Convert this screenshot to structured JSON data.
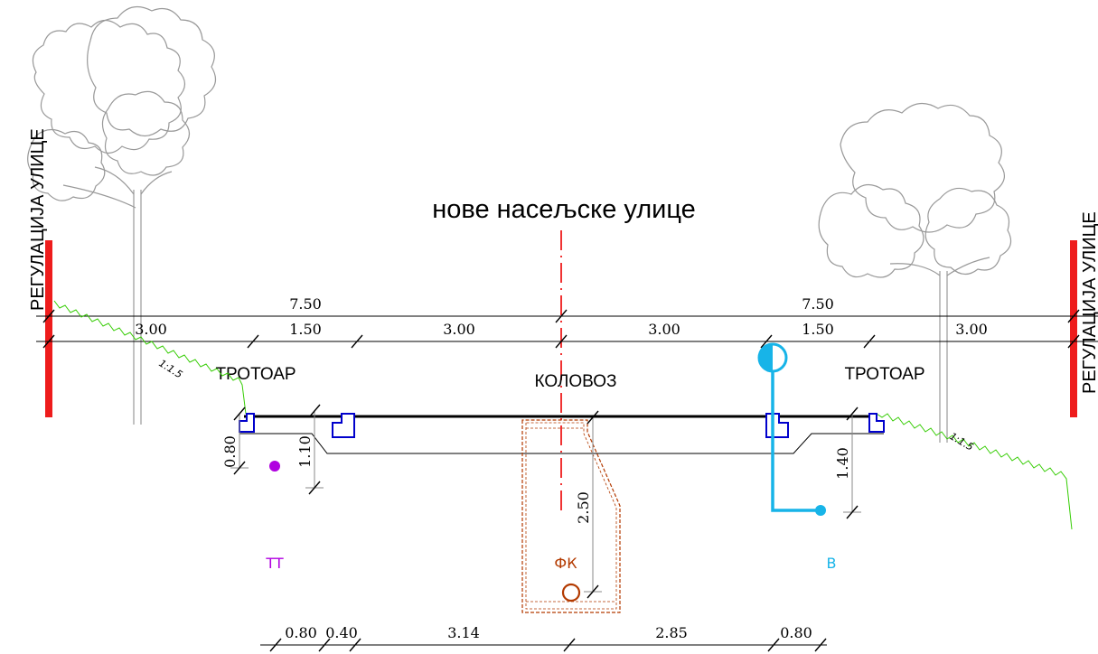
{
  "title": "нове насељске улице",
  "regulation_left": "РЕГУЛАЦИЈА УЛИЦЕ",
  "regulation_right": "РЕГУЛАЦИЈА УЛИЦЕ",
  "labels": {
    "sidewalk_left": "ТРОТОАР",
    "roadway": "КОЛОВОЗ",
    "sidewalk_right": "ТРОТОАР"
  },
  "top_dimensions": {
    "total_left": "7.50",
    "total_right": "7.50",
    "segments": [
      "3.00",
      "1.50",
      "3.00",
      "3.00",
      "1.50",
      "3.00"
    ]
  },
  "vertical_dimensions": {
    "left_outer": "0.80",
    "left_inner": "1.10",
    "sewer": "2.50",
    "right": "1.40"
  },
  "slopes": {
    "left": "1:1.5",
    "right": "1:1.5"
  },
  "utilities": {
    "tt": {
      "label": "TT",
      "color": "#b000e0"
    },
    "fk": {
      "label": "ФК",
      "color": "#b33a00"
    },
    "v": {
      "label": "B",
      "color": "#17b4e8"
    }
  },
  "bottom_dimensions": [
    "0.80",
    "0.40",
    "3.14",
    "2.85",
    "0.80"
  ],
  "colors": {
    "regulation": "#ee1c1c",
    "terrain": "#33cc00",
    "curb": "#0000cc",
    "axis": "#ee1c1c",
    "tree": "#999999"
  }
}
